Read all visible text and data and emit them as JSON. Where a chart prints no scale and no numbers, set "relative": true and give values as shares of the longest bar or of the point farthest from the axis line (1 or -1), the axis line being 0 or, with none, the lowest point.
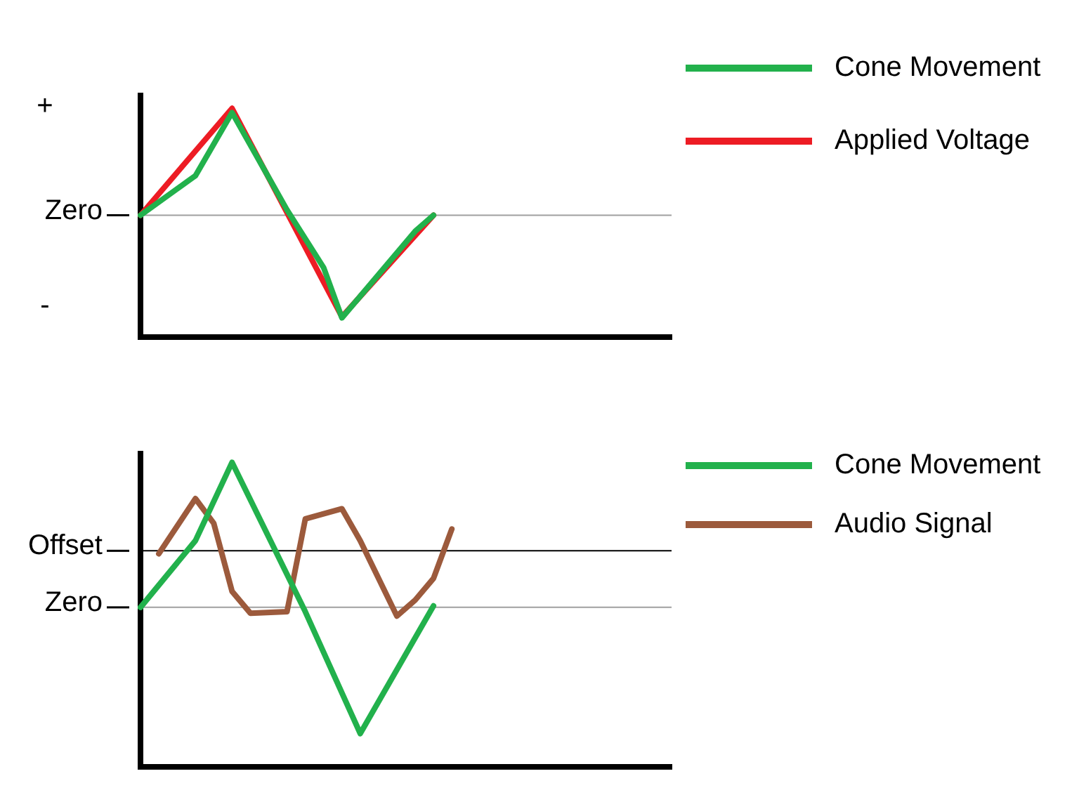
{
  "chart_data": [
    {
      "type": "line",
      "relative": true,
      "legend": "top right",
      "line_style": "solid",
      "marker": "none",
      "categories": [
        null,
        null,
        null,
        null,
        null,
        null,
        null,
        null,
        null,
        null,
        null,
        null,
        null,
        null,
        null,
        null,
        null,
        null,
        null,
        null,
        null,
        null,
        null,
        null,
        null,
        null,
        null,
        null,
        null,
        null
      ],
      "series": [
        {
          "name": "Cone Movement",
          "color": "#22b14c",
          "values": [
            0,
            null,
            null,
            0.37,
            null,
            0.96,
            null,
            null,
            0.05,
            null,
            -0.49,
            -0.96,
            null,
            null,
            null,
            -0.15,
            0,
            null,
            null,
            null,
            null,
            null,
            null,
            null,
            null,
            null,
            null,
            null,
            null,
            null
          ]
        },
        {
          "name": "Applied Voltage",
          "color": "#ed1c24",
          "values": [
            0,
            null,
            null,
            null,
            null,
            1,
            null,
            null,
            null,
            null,
            null,
            -0.95,
            null,
            null,
            null,
            null,
            0,
            null,
            null,
            null,
            null,
            null,
            null,
            null,
            null,
            null,
            null,
            null,
            null,
            null
          ]
        }
      ],
      "ref_lines": [
        {
          "axis": "y",
          "value": 0,
          "label": "Zero",
          "color": "#a0a0a0"
        }
      ],
      "annotations": [
        "+",
        "-"
      ]
    },
    {
      "type": "line",
      "relative": true,
      "legend": "top right",
      "line_style": "solid",
      "marker": "none",
      "categories": [
        null,
        null,
        null,
        null,
        null,
        null,
        null,
        null,
        null,
        null,
        null,
        null,
        null,
        null,
        null,
        null,
        null,
        null,
        null,
        null,
        null,
        null,
        null,
        null,
        null,
        null,
        null,
        null,
        null,
        null
      ],
      "series": [
        {
          "name": "Cone Movement",
          "color": "#22b14c",
          "values": [
            0,
            null,
            null,
            0.46,
            null,
            1,
            null,
            null,
            null,
            -0.03,
            null,
            null,
            -0.87,
            null,
            null,
            null,
            0.01,
            null,
            null,
            null,
            null,
            null,
            null,
            null,
            null,
            null,
            null,
            null,
            null,
            null
          ]
        },
        {
          "name": "Audio Signal",
          "color": "#9c5a3c",
          "values": [
            null,
            0.37,
            null,
            0.75,
            0.58,
            0.11,
            -0.04,
            null,
            -0.03,
            0.61,
            null,
            0.68,
            0.46,
            null,
            -0.06,
            0.05,
            0.2,
            0.54,
            null,
            null,
            null,
            null,
            null,
            null,
            null,
            null,
            null,
            null,
            null,
            null
          ]
        }
      ],
      "ref_lines": [
        {
          "axis": "y",
          "value": 0,
          "label": "Zero",
          "color": "#a0a0a0"
        },
        {
          "axis": "y",
          "value": 0.39,
          "label": "Offset",
          "color": "#000000"
        }
      ]
    }
  ]
}
